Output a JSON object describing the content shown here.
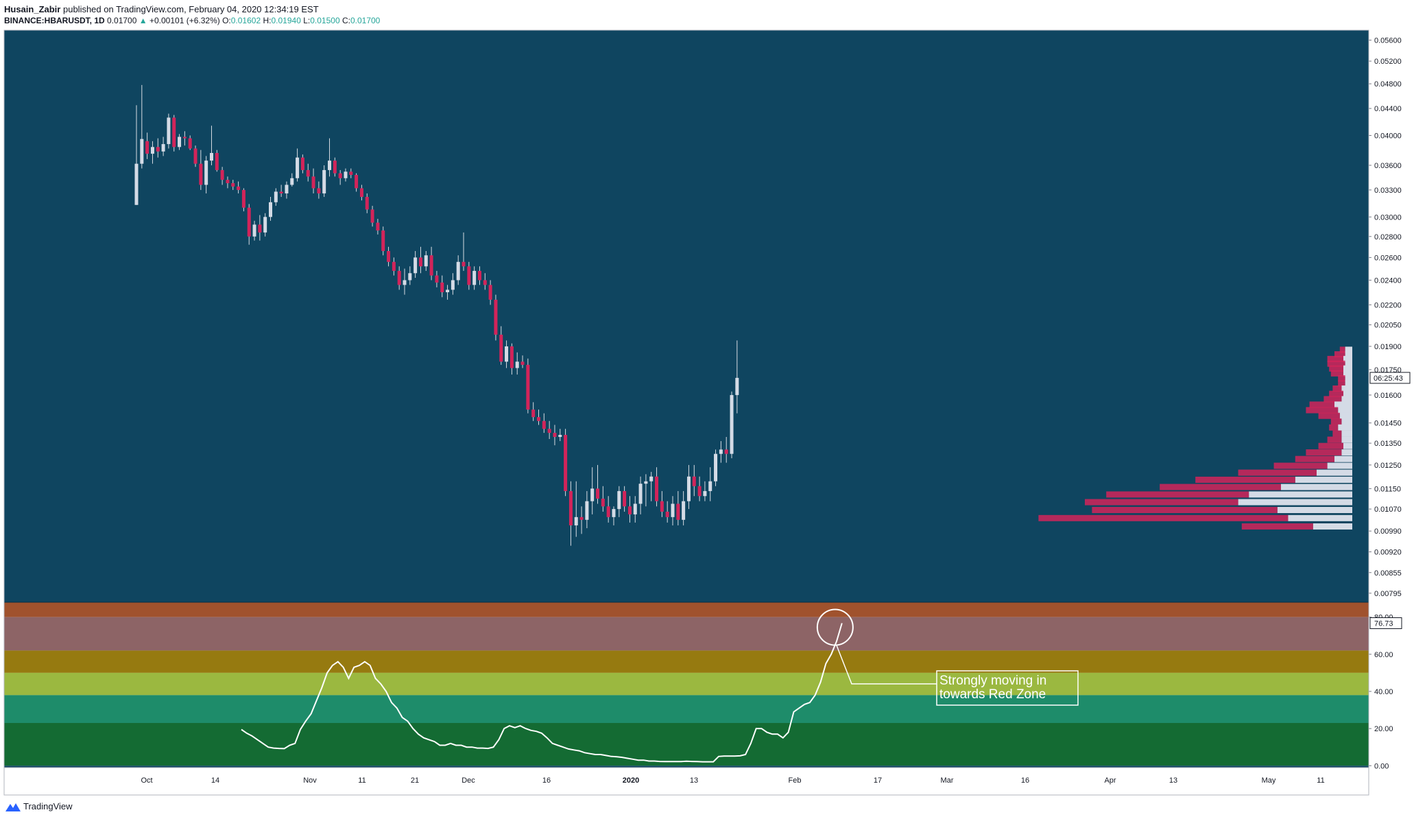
{
  "header": {
    "author": "Husain_Zabir",
    "published_text": "published on TradingView.com, February 04, 2020 12:34:19 EST",
    "symbol": "BINANCE:HBARUSDT, 1D",
    "last": "0.01700",
    "change_arrow": "▲",
    "change": "+0.00101 (+6.32%)",
    "o_label": "O:",
    "o_value": "0.01602",
    "h_label": "H:",
    "h_value": "0.01940",
    "l_label": "L:",
    "l_value": "0.01500",
    "c_label": "C:",
    "c_value": "0.01700"
  },
  "footer": {
    "brand": "TradingView"
  },
  "colors": {
    "background": "#0f4560",
    "up_candle": "#d4dbe6",
    "down_candle": "#d2245a",
    "wick": "#d9dde4",
    "indicator_line": "#ffffff",
    "zones": [
      "#a0522d",
      "#8d6466",
      "#967a10",
      "#9bb840",
      "#1e8c6a",
      "#146b33"
    ]
  },
  "chart_data": [
    {
      "type": "candlestick",
      "x_axis_labels": [
        "Oct",
        "14",
        "Nov",
        "11",
        "21",
        "Dec",
        "16",
        "2020",
        "13",
        "Feb",
        "17",
        "Mar",
        "16",
        "Apr",
        "13",
        "May",
        "11"
      ],
      "y_axis_labels": [
        "0.05600",
        "0.05200",
        "0.04800",
        "0.04400",
        "0.04000",
        "0.03600",
        "0.03300",
        "0.03000",
        "0.02800",
        "0.02600",
        "0.02400",
        "0.02200",
        "0.02050",
        "0.01900",
        "0.01750",
        "0.01600",
        "0.01450",
        "0.01350",
        "0.01250",
        "0.01150",
        "0.01070",
        "0.00990",
        "0.00920",
        "0.00855",
        "0.00795"
      ],
      "y_scale": "log",
      "ylim": [
        0.0077,
        0.058
      ],
      "countdown_label": "06:25:43",
      "series": [
        {
          "fields": [
            "open",
            "high",
            "low",
            "close"
          ],
          "values": [
            [
              0.0313,
              0.0445,
              0.0313,
              0.0362
            ],
            [
              0.0362,
              0.0478,
              0.0356,
              0.0395
            ],
            [
              0.0392,
              0.0404,
              0.0368,
              0.0375
            ],
            [
              0.0375,
              0.0392,
              0.0362,
              0.0384
            ],
            [
              0.0384,
              0.0396,
              0.037,
              0.0378
            ],
            [
              0.0378,
              0.0398,
              0.0372,
              0.0388
            ],
            [
              0.0388,
              0.0432,
              0.0382,
              0.0426
            ],
            [
              0.0426,
              0.043,
              0.0378,
              0.0384
            ],
            [
              0.0384,
              0.0402,
              0.038,
              0.0398
            ],
            [
              0.0398,
              0.0406,
              0.0386,
              0.0396
            ],
            [
              0.0396,
              0.04,
              0.038,
              0.0382
            ],
            [
              0.0382,
              0.0386,
              0.0358,
              0.0362
            ],
            [
              0.0362,
              0.038,
              0.033,
              0.0336
            ],
            [
              0.0336,
              0.0372,
              0.0326,
              0.0366
            ],
            [
              0.0366,
              0.0414,
              0.036,
              0.0376
            ],
            [
              0.0376,
              0.038,
              0.0352,
              0.0354
            ],
            [
              0.0354,
              0.0358,
              0.0336,
              0.0342
            ],
            [
              0.0342,
              0.0346,
              0.0332,
              0.0338
            ],
            [
              0.0338,
              0.0342,
              0.033,
              0.0334
            ],
            [
              0.0334,
              0.034,
              0.0326,
              0.033
            ],
            [
              0.033,
              0.0332,
              0.0306,
              0.031
            ],
            [
              0.031,
              0.0314,
              0.0272,
              0.028
            ],
            [
              0.028,
              0.0296,
              0.0276,
              0.0292
            ],
            [
              0.0292,
              0.0302,
              0.0276,
              0.0284
            ],
            [
              0.0284,
              0.0304,
              0.028,
              0.03
            ],
            [
              0.03,
              0.0322,
              0.0296,
              0.0316
            ],
            [
              0.0316,
              0.0332,
              0.0312,
              0.0328
            ],
            [
              0.0328,
              0.0336,
              0.0322,
              0.0326
            ],
            [
              0.0326,
              0.034,
              0.032,
              0.0336
            ],
            [
              0.0336,
              0.035,
              0.0334,
              0.0344
            ],
            [
              0.0344,
              0.0382,
              0.034,
              0.037
            ],
            [
              0.037,
              0.0374,
              0.035,
              0.0354
            ],
            [
              0.0354,
              0.0362,
              0.034,
              0.0346
            ],
            [
              0.0346,
              0.0356,
              0.0326,
              0.0332
            ],
            [
              0.0332,
              0.034,
              0.032,
              0.0326
            ],
            [
              0.0326,
              0.036,
              0.0322,
              0.0354
            ],
            [
              0.0354,
              0.0396,
              0.0346,
              0.0366
            ],
            [
              0.0366,
              0.037,
              0.0346,
              0.035
            ],
            [
              0.035,
              0.0354,
              0.0336,
              0.0344
            ],
            [
              0.0344,
              0.0356,
              0.034,
              0.0352
            ],
            [
              0.0352,
              0.0356,
              0.0344,
              0.0348
            ],
            [
              0.0348,
              0.035,
              0.0328,
              0.0332
            ],
            [
              0.0332,
              0.0336,
              0.0318,
              0.0322
            ],
            [
              0.0322,
              0.0326,
              0.0304,
              0.0308
            ],
            [
              0.0308,
              0.0312,
              0.029,
              0.0294
            ],
            [
              0.0294,
              0.0298,
              0.0282,
              0.0286
            ],
            [
              0.0286,
              0.029,
              0.0262,
              0.0266
            ],
            [
              0.0266,
              0.027,
              0.0252,
              0.0256
            ],
            [
              0.0256,
              0.026,
              0.0244,
              0.0248
            ],
            [
              0.0248,
              0.0252,
              0.0232,
              0.0236
            ],
            [
              0.0236,
              0.025,
              0.0228,
              0.024
            ],
            [
              0.024,
              0.0252,
              0.0236,
              0.0246
            ],
            [
              0.0246,
              0.0266,
              0.0242,
              0.026
            ],
            [
              0.026,
              0.027,
              0.0246,
              0.0252
            ],
            [
              0.0252,
              0.0266,
              0.0248,
              0.0262
            ],
            [
              0.0262,
              0.027,
              0.024,
              0.0244
            ],
            [
              0.0244,
              0.0248,
              0.0234,
              0.0238
            ],
            [
              0.0238,
              0.0244,
              0.0226,
              0.023
            ],
            [
              0.023,
              0.0236,
              0.0224,
              0.0232
            ],
            [
              0.0232,
              0.0246,
              0.0228,
              0.024
            ],
            [
              0.024,
              0.0262,
              0.0236,
              0.0256
            ],
            [
              0.0256,
              0.0284,
              0.0248,
              0.0252
            ],
            [
              0.0252,
              0.0256,
              0.0232,
              0.0236
            ],
            [
              0.0236,
              0.0252,
              0.0232,
              0.0248
            ],
            [
              0.0248,
              0.0252,
              0.0236,
              0.024
            ],
            [
              0.024,
              0.0246,
              0.0232,
              0.0236
            ],
            [
              0.0236,
              0.024,
              0.022,
              0.0224
            ],
            [
              0.0224,
              0.0228,
              0.0194,
              0.0198
            ],
            [
              0.0198,
              0.0204,
              0.0178,
              0.018
            ],
            [
              0.018,
              0.0194,
              0.0176,
              0.019
            ],
            [
              0.019,
              0.0192,
              0.0172,
              0.0176
            ],
            [
              0.0176,
              0.0186,
              0.0172,
              0.018
            ],
            [
              0.018,
              0.0184,
              0.0176,
              0.0178
            ],
            [
              0.0178,
              0.0182,
              0.015,
              0.0152
            ],
            [
              0.0152,
              0.0156,
              0.0146,
              0.0148
            ],
            [
              0.0148,
              0.0152,
              0.0144,
              0.0146
            ],
            [
              0.0146,
              0.015,
              0.014,
              0.0142
            ],
            [
              0.0142,
              0.0146,
              0.0137,
              0.014
            ],
            [
              0.014,
              0.0144,
              0.0134,
              0.0138
            ],
            [
              0.0138,
              0.0142,
              0.0136,
              0.0139
            ],
            [
              0.0139,
              0.0142,
              0.0112,
              0.0114
            ],
            [
              0.0114,
              0.0118,
              0.0094,
              0.0101
            ],
            [
              0.0101,
              0.0118,
              0.0097,
              0.0104
            ],
            [
              0.0104,
              0.0108,
              0.0098,
              0.0103
            ],
            [
              0.0103,
              0.0114,
              0.01,
              0.011
            ],
            [
              0.011,
              0.0124,
              0.0105,
              0.0115
            ],
            [
              0.0115,
              0.0125,
              0.0109,
              0.0111
            ],
            [
              0.0111,
              0.0116,
              0.0106,
              0.0108
            ],
            [
              0.0108,
              0.0112,
              0.0102,
              0.0104
            ],
            [
              0.0104,
              0.0108,
              0.0101,
              0.0107
            ],
            [
              0.0107,
              0.0116,
              0.0104,
              0.0114
            ],
            [
              0.0114,
              0.0116,
              0.0106,
              0.0108
            ],
            [
              0.0108,
              0.0112,
              0.0102,
              0.0105
            ],
            [
              0.0105,
              0.0112,
              0.0102,
              0.0109
            ],
            [
              0.0109,
              0.012,
              0.0105,
              0.0117
            ],
            [
              0.0117,
              0.0121,
              0.0108,
              0.0118
            ],
            [
              0.0118,
              0.0122,
              0.011,
              0.012
            ],
            [
              0.012,
              0.0124,
              0.0108,
              0.011
            ],
            [
              0.011,
              0.0114,
              0.0104,
              0.0106
            ],
            [
              0.0106,
              0.011,
              0.0102,
              0.0104
            ],
            [
              0.0104,
              0.0112,
              0.0101,
              0.0109
            ],
            [
              0.0109,
              0.0114,
              0.0101,
              0.0103
            ],
            [
              0.0103,
              0.0114,
              0.0101,
              0.011
            ],
            [
              0.011,
              0.0125,
              0.0107,
              0.012
            ],
            [
              0.012,
              0.0125,
              0.0112,
              0.0116
            ],
            [
              0.0116,
              0.012,
              0.011,
              0.0112
            ],
            [
              0.0112,
              0.0118,
              0.011,
              0.0114
            ],
            [
              0.0114,
              0.0124,
              0.011,
              0.0118
            ],
            [
              0.0118,
              0.0132,
              0.0116,
              0.013
            ],
            [
              0.013,
              0.0136,
              0.0126,
              0.0132
            ],
            [
              0.0132,
              0.0138,
              0.0126,
              0.013
            ],
            [
              0.013,
              0.0162,
              0.0128,
              0.016
            ],
            [
              0.016,
              0.0194,
              0.015,
              0.017
            ]
          ]
        }
      ],
      "volume_profile": {
        "levels": [
          0.01875,
          0.01845,
          0.01815,
          0.01785,
          0.01755,
          0.01725,
          0.01695,
          0.01665,
          0.01635,
          0.01605,
          0.01575,
          0.01545,
          0.01515,
          0.01485,
          0.01455,
          0.01425,
          0.01395,
          0.01365,
          0.01335,
          0.01305,
          0.01275,
          0.01245,
          0.01215,
          0.01185,
          0.01155,
          0.01125,
          0.01095,
          0.01065,
          0.01035,
          0.01005
        ],
        "up_volume": [
          4,
          4,
          5,
          4,
          5,
          5,
          4,
          4,
          6,
          5,
          6,
          10,
          8,
          7,
          6,
          8,
          6,
          6,
          5,
          6,
          10,
          14,
          20,
          32,
          40,
          58,
          64,
          42,
          36,
          22
        ],
        "down_volume": [
          3,
          6,
          9,
          10,
          8,
          7,
          4,
          4,
          5,
          8,
          10,
          14,
          18,
          12,
          6,
          5,
          5,
          8,
          14,
          20,
          22,
          30,
          44,
          56,
          68,
          80,
          86,
          104,
          140,
          40
        ]
      }
    },
    {
      "type": "line",
      "y_axis_labels": [
        "80.00",
        "60.00",
        "40.00",
        "20.00",
        "0.00"
      ],
      "ylim": [
        -1,
        88
      ],
      "current_value_label": "76.73",
      "zones": [
        [
          80,
          88
        ],
        [
          62,
          80
        ],
        [
          50,
          62
        ],
        [
          38,
          50
        ],
        [
          23,
          38
        ],
        [
          0,
          23
        ]
      ],
      "series": [
        {
          "name": "",
          "values": [
            19.5,
            17.5,
            16,
            14,
            12,
            10,
            9.5,
            9.3,
            9.2,
            11,
            12,
            19.5,
            24,
            28,
            35,
            42,
            50,
            54,
            56,
            53,
            47,
            53,
            54,
            56,
            54,
            47,
            44,
            40,
            34,
            31,
            26,
            24,
            20,
            17,
            15,
            14,
            13,
            11,
            11,
            12,
            11,
            11,
            10,
            10,
            9.5,
            9.5,
            9.3,
            10,
            14,
            20,
            21.5,
            20.5,
            21.5,
            20,
            19,
            18.5,
            17.5,
            15,
            12,
            11,
            10,
            9,
            8.5,
            8,
            7,
            6.5,
            6,
            6,
            5.5,
            5,
            4.8,
            4.5,
            4,
            3.5,
            3,
            3,
            2.5,
            2.5,
            2.3,
            2.2,
            2.2,
            2.2,
            2.2,
            2.4,
            2.3,
            2.2,
            2.1,
            2.1,
            2.1,
            5,
            5.2,
            5.2,
            5.2,
            5.3,
            6,
            12,
            20,
            20,
            18,
            17,
            17,
            15,
            18,
            29,
            31,
            33,
            34,
            38,
            45,
            55,
            60,
            67,
            76.73
          ]
        }
      ],
      "annotation": "Strongly moving in\ntowards Red Zone"
    }
  ]
}
